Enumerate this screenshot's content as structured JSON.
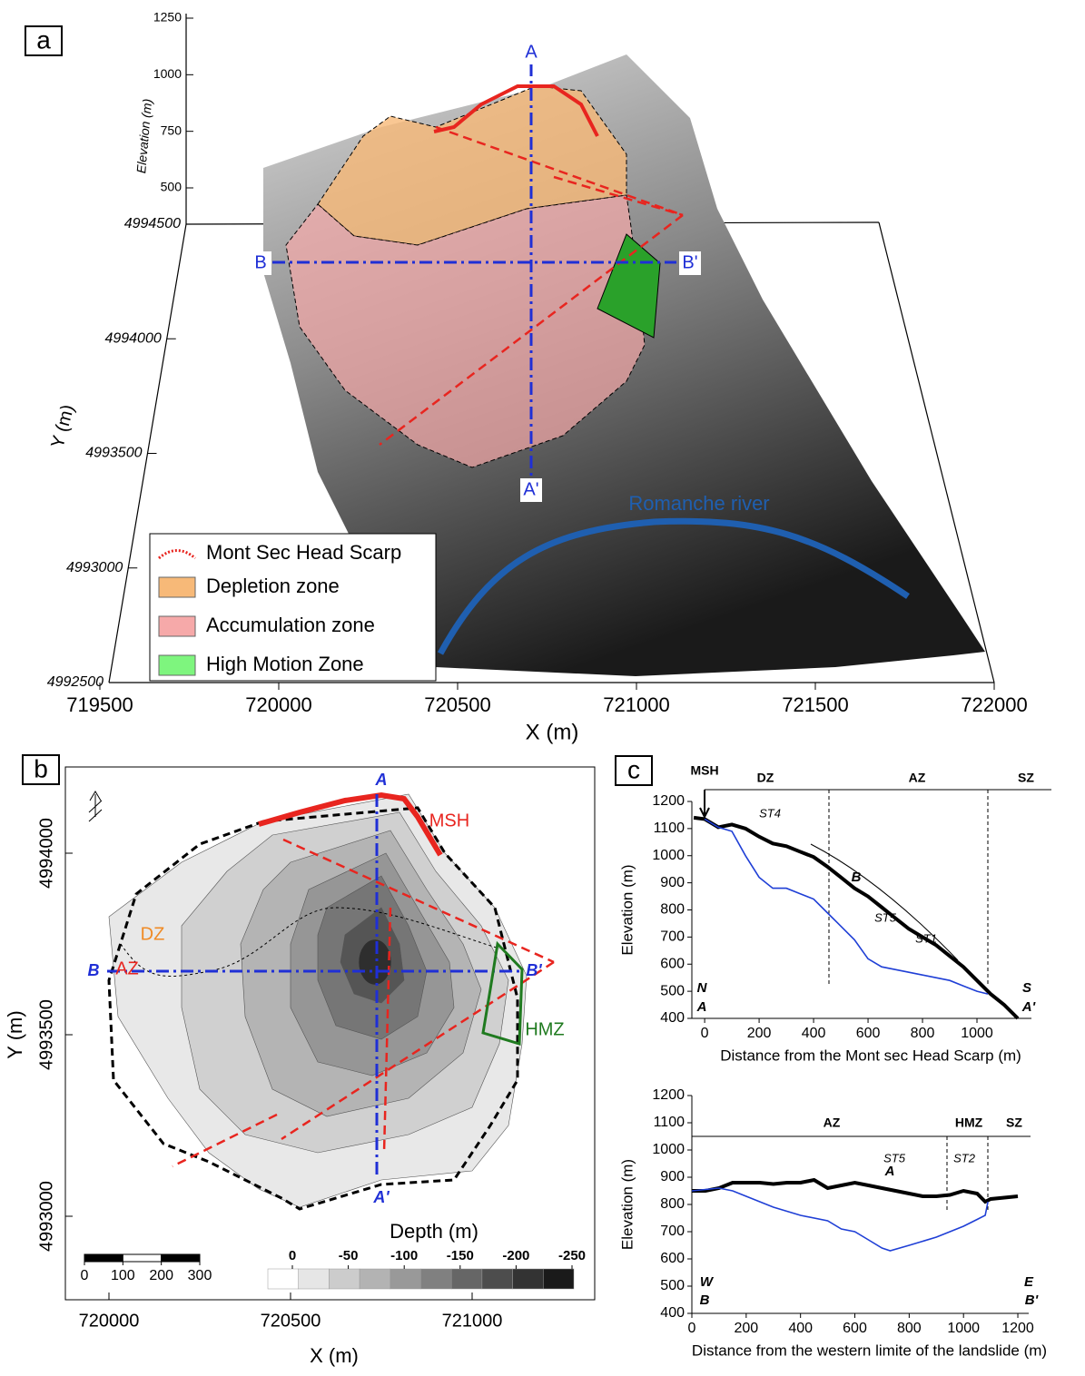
{
  "chart_data": [
    {
      "type": "terrain-3d",
      "panel": "a",
      "xlabel": "X (m)",
      "ylabel": "Y (m)",
      "zlabel": "Elevation (m)",
      "xticks": [
        719500,
        720000,
        720500,
        721000,
        721500,
        722000
      ],
      "yticks": [
        4992500,
        4993000,
        4993500,
        4994000,
        4994500
      ],
      "zticks": [
        500,
        750,
        1000,
        1250
      ],
      "section_labels": [
        "A",
        "A'",
        "B",
        "B'"
      ],
      "river_label": "Romanche river",
      "legend": [
        {
          "name": "Mont Sec Head Scarp",
          "color": "#e8251f"
        },
        {
          "name": "Depletion zone",
          "color": "#f7b978"
        },
        {
          "name": "Accumulation zone",
          "color": "#f6a9a9"
        },
        {
          "name": "High Motion Zone",
          "color": "#7ef57e"
        }
      ]
    },
    {
      "type": "depth-contour",
      "panel": "b",
      "xlabel": "X (m)",
      "ylabel": "Y (m)",
      "xticks": [
        720000,
        720500,
        721000
      ],
      "yticks": [
        4993000,
        4993500,
        4994000
      ],
      "colorbar_label": "Depth (m)",
      "colorbar_ticks": [
        0,
        -50,
        -100,
        -150,
        -200,
        -250
      ],
      "scale_ticks": [
        0,
        100,
        200,
        300
      ],
      "zone_labels": [
        {
          "text": "DZ",
          "color": "#f08a24"
        },
        {
          "text": "AZ",
          "color": "#e8251f"
        },
        {
          "text": "MSH",
          "color": "#e8251f"
        },
        {
          "text": "HMZ",
          "color": "#1f7a1f"
        }
      ],
      "section_labels": [
        "A",
        "A'",
        "B",
        "B'"
      ]
    },
    {
      "type": "line",
      "panel": "c",
      "xlabel": "Distance from the Mont sec Head Scarp (m)",
      "ylabel": "Elevation (m)",
      "xlim": [
        -47,
        1200
      ],
      "ylim": [
        400,
        1200
      ],
      "xticks": [
        0,
        200,
        400,
        600,
        800,
        1000
      ],
      "yticks": [
        400,
        500,
        600,
        700,
        800,
        900,
        1000,
        1100,
        1200
      ],
      "zones": [
        "MSH",
        "DZ",
        "AZ",
        "SZ"
      ],
      "annotations": [
        "ST4",
        "B",
        "ST5",
        "ST1",
        "N",
        "A",
        "S",
        "A'"
      ],
      "series": [
        {
          "color": "#000000",
          "x": [
            -40,
            0,
            50,
            100,
            150,
            200,
            250,
            300,
            350,
            400,
            450,
            500,
            550,
            600,
            650,
            700,
            750,
            800,
            850,
            900,
            950,
            1000,
            1050,
            1100,
            1150
          ],
          "values": [
            1140,
            1135,
            1105,
            1115,
            1100,
            1070,
            1045,
            1035,
            1015,
            995,
            960,
            920,
            880,
            850,
            810,
            770,
            730,
            700,
            670,
            630,
            590,
            540,
            490,
            450,
            400
          ]
        },
        {
          "color": "#1f3fd6",
          "x": [
            0,
            50,
            100,
            150,
            200,
            250,
            300,
            350,
            400,
            450,
            500,
            550,
            600,
            650,
            700,
            750,
            800,
            850,
            900,
            950,
            1000,
            1040
          ],
          "values": [
            1135,
            1105,
            1090,
            1000,
            920,
            880,
            880,
            860,
            840,
            790,
            740,
            690,
            620,
            590,
            580,
            570,
            560,
            550,
            540,
            520,
            500,
            490
          ]
        }
      ]
    },
    {
      "type": "line",
      "xlabel": "Distance from the western limite of the landslide (m)",
      "ylabel": "Elevation (m)",
      "xlim": [
        0,
        1240
      ],
      "ylim": [
        400,
        1200
      ],
      "xticks": [
        0,
        200,
        400,
        600,
        800,
        1000,
        1200
      ],
      "yticks": [
        400,
        500,
        600,
        700,
        800,
        900,
        1000,
        1100,
        1200
      ],
      "zones": [
        "AZ",
        "HMZ",
        "SZ"
      ],
      "annotations": [
        "ST5",
        "A",
        "ST2",
        "W",
        "B",
        "E",
        "B'"
      ],
      "series": [
        {
          "color": "#000000",
          "x": [
            0,
            50,
            100,
            150,
            200,
            250,
            300,
            350,
            400,
            450,
            500,
            550,
            600,
            650,
            700,
            750,
            800,
            850,
            900,
            950,
            1000,
            1050,
            1080,
            1100,
            1150,
            1200
          ],
          "values": [
            850,
            850,
            860,
            880,
            880,
            880,
            875,
            880,
            880,
            890,
            860,
            870,
            880,
            870,
            860,
            850,
            840,
            830,
            830,
            835,
            850,
            840,
            810,
            820,
            825,
            830
          ]
        },
        {
          "color": "#1f3fd6",
          "x": [
            0,
            100,
            150,
            200,
            300,
            400,
            500,
            550,
            600,
            650,
            700,
            730,
            800,
            900,
            1000,
            1050,
            1080,
            1090
          ],
          "values": [
            850,
            860,
            850,
            830,
            790,
            760,
            740,
            710,
            700,
            670,
            640,
            630,
            650,
            680,
            720,
            745,
            760,
            810
          ]
        }
      ]
    }
  ]
}
